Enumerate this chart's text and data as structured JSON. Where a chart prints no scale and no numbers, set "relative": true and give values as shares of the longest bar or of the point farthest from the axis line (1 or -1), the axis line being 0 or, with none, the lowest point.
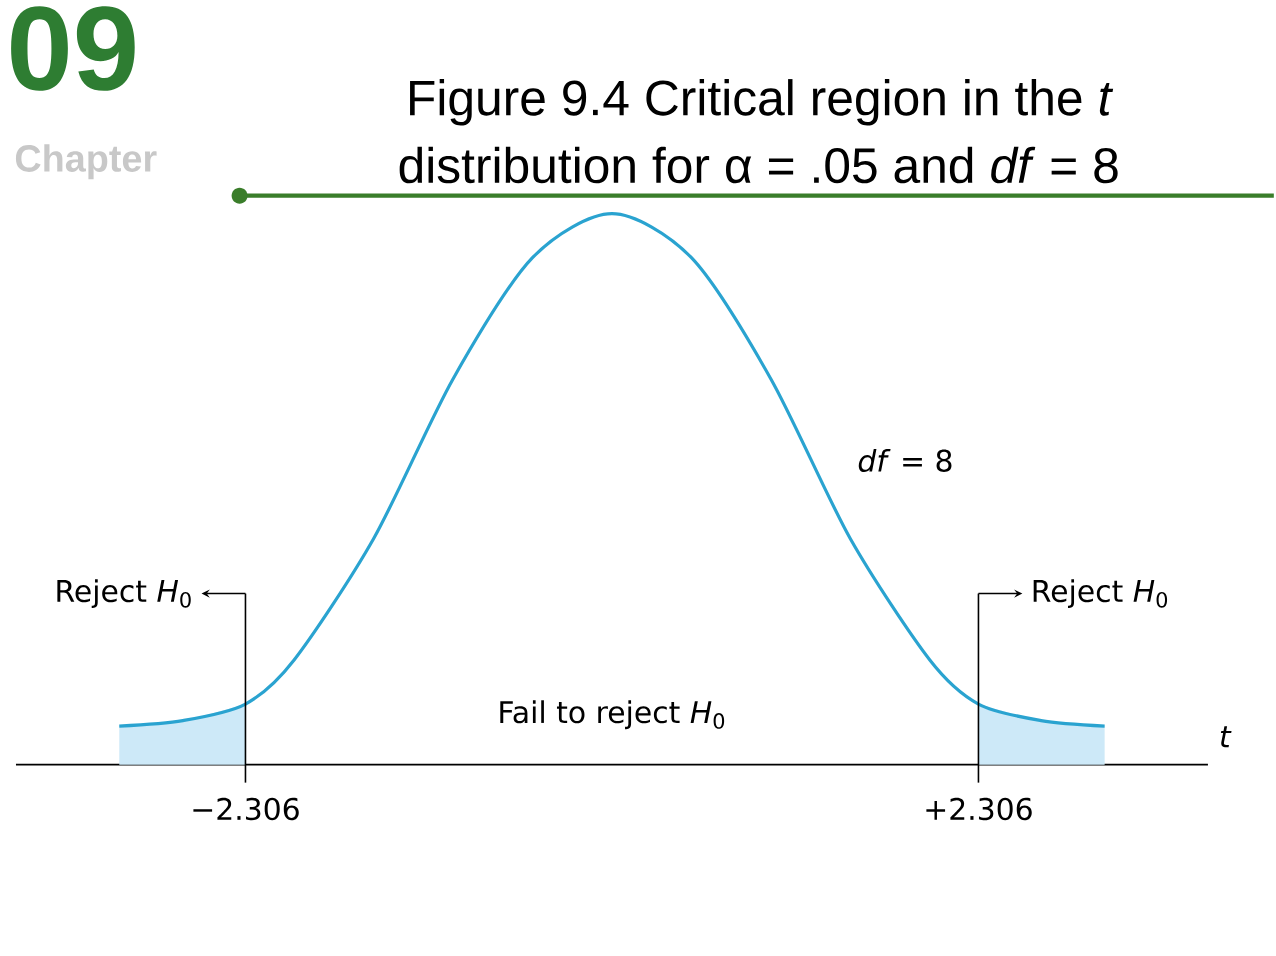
{
  "chart_data": {
    "type": "line",
    "title": "Figure 9.4    Critical region in the *t* distribution for α = .05 and *df* = 8",
    "xlabel": "*t*",
    "relative": true,
    "x": [
      -3.1,
      -2.7,
      -2.306,
      -2,
      -1.5,
      -1,
      -0.5,
      0,
      0.5,
      1,
      1.5,
      2,
      2.306,
      2.7,
      3.1
    ],
    "series": [
      {
        "type": "area",
        "color": "#cde9f8",
        "x": [
          -3.1,
          -2.7,
          -2.306
        ],
        "values": [
          0.07,
          0.08,
          0.11
        ]
      },
      {
        "type": "area",
        "color": "#cde9f8",
        "x": [
          2.306,
          2.7,
          3.1
        ],
        "values": [
          0.11,
          0.08,
          0.07
        ]
      },
      {
        "color": "#2aa3d0",
        "values": [
          0.07,
          0.08,
          0.11,
          0.19,
          0.41,
          0.7,
          0.92,
          1,
          0.92,
          0.7,
          0.41,
          0.19,
          0.11,
          0.08,
          0.07
        ]
      }
    ],
    "xlim": [
      -3.75,
      3.75
    ],
    "xticks": [
      {
        "value": -2.306,
        "label": "−2.306"
      },
      {
        "value": 2.306,
        "label": "+2.306"
      }
    ],
    "ref_lines": [
      {
        "axis": "x",
        "value": -2.306,
        "label": "Reject *H*$_{0}$"
      },
      {
        "axis": "x",
        "value": 2.306,
        "label": "Reject *H*$_{0}$"
      }
    ],
    "annotations": [
      "09",
      "Chapter",
      "Fail to reject *H*$_{0}$",
      "*df* = 8"
    ],
    "marker": "none",
    "line_style": "solid"
  }
}
